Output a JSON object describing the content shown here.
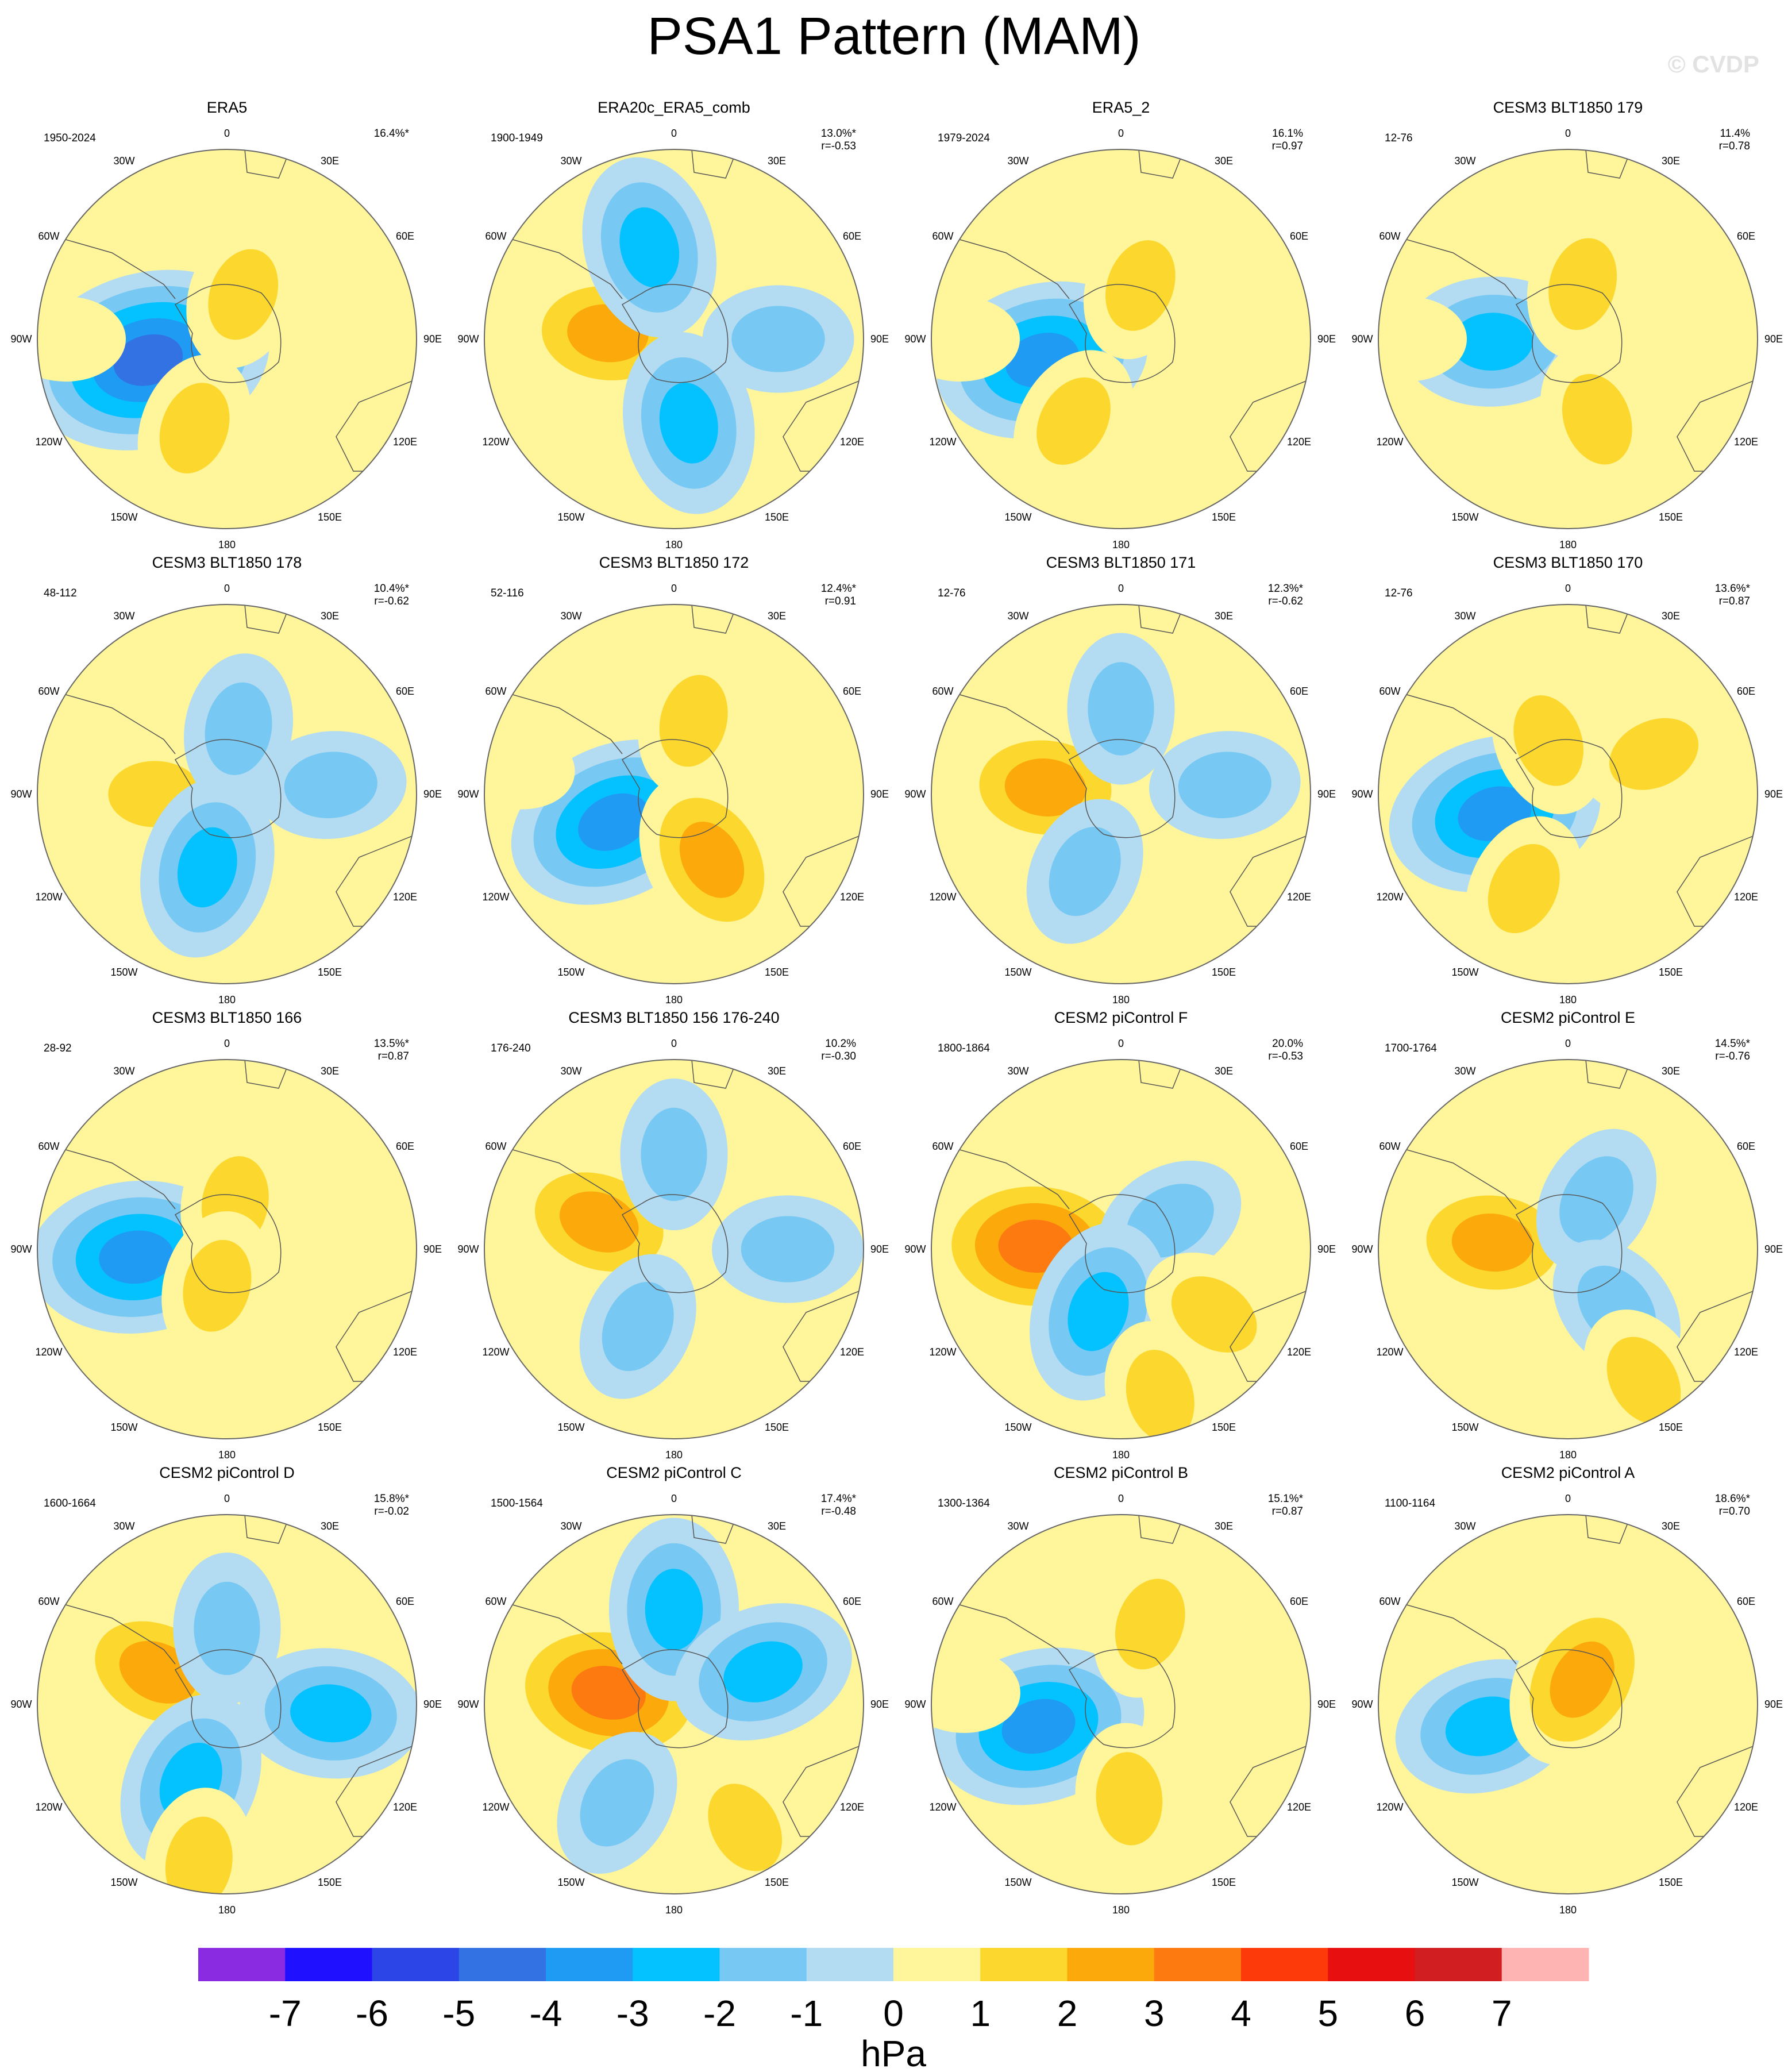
{
  "title": "PSA1 Pattern (MAM)",
  "watermark": "© CVDP",
  "longitude_labels": [
    "0",
    "30E",
    "60E",
    "90E",
    "120E",
    "150E",
    "180",
    "150W",
    "120W",
    "90W",
    "60W",
    "30W"
  ],
  "colorbar": {
    "colors": [
      "#8a2be2",
      "#1f10ff",
      "#2b45e6",
      "#3272e3",
      "#1f9bf4",
      "#04c2ff",
      "#77c8f2",
      "#b3dcf2",
      "#fff59a",
      "#fcd82e",
      "#fca90c",
      "#fc7a10",
      "#fc3a0a",
      "#e80f10",
      "#d01e21",
      "#ffb4b4"
    ],
    "labels": [
      "-7",
      "-6",
      "-5",
      "-4",
      "-3",
      "-2",
      "-1",
      "0",
      "1",
      "2",
      "3",
      "4",
      "5",
      "6",
      "7"
    ],
    "units": "hPa"
  },
  "panels": [
    {
      "title": "ERA5",
      "years": "1950-2024",
      "pct": "16.4%*",
      "r": "",
      "blobs": [
        {
          "lon": 255,
          "dist": 0.43,
          "max": -5
        },
        {
          "lon": 20,
          "dist": 0.25,
          "max": 2
        },
        {
          "lon": 200,
          "dist": 0.5,
          "max": 2
        },
        {
          "lon": 270,
          "dist": 0.85,
          "max": 1
        }
      ]
    },
    {
      "title": "ERA20c_ERA5_comb",
      "years": "1900-1949",
      "pct": "13.0%*",
      "r": "r=-0.53",
      "blobs": [
        {
          "lon": 275,
          "dist": 0.35,
          "max": 3
        },
        {
          "lon": 170,
          "dist": 0.45,
          "max": -3
        },
        {
          "lon": 345,
          "dist": 0.5,
          "max": -3
        },
        {
          "lon": 90,
          "dist": 0.55,
          "max": -2
        }
      ]
    },
    {
      "title": "ERA5_2",
      "years": "1979-2024",
      "pct": "16.1%",
      "r": "r=0.97",
      "blobs": [
        {
          "lon": 255,
          "dist": 0.43,
          "max": -4
        },
        {
          "lon": 20,
          "dist": 0.3,
          "max": 2
        },
        {
          "lon": 210,
          "dist": 0.5,
          "max": 2
        },
        {
          "lon": 270,
          "dist": 0.85,
          "max": 1
        }
      ]
    },
    {
      "title": "CESM3 BLT1850 179",
      "years": "12-76",
      "pct": "11.4%",
      "r": "r=0.78",
      "blobs": [
        {
          "lon": 268,
          "dist": 0.4,
          "max": -3
        },
        {
          "lon": 15,
          "dist": 0.3,
          "max": 2
        },
        {
          "lon": 160,
          "dist": 0.45,
          "max": 2
        },
        {
          "lon": 270,
          "dist": 0.85,
          "max": 1
        }
      ]
    },
    {
      "title": "CESM3 BLT1850 178",
      "years": "48-112",
      "pct": "10.4%*",
      "r": "r=-0.62",
      "blobs": [
        {
          "lon": 270,
          "dist": 0.38,
          "max": 2
        },
        {
          "lon": 10,
          "dist": 0.35,
          "max": -2
        },
        {
          "lon": 195,
          "dist": 0.4,
          "max": -3
        },
        {
          "lon": 85,
          "dist": 0.55,
          "max": -2
        }
      ]
    },
    {
      "title": "CESM3 BLT1850 172",
      "years": "52-116",
      "pct": "12.4%*",
      "r": "r=0.91",
      "blobs": [
        {
          "lon": 245,
          "dist": 0.35,
          "max": -4
        },
        {
          "lon": 150,
          "dist": 0.4,
          "max": 3
        },
        {
          "lon": 15,
          "dist": 0.4,
          "max": 2
        },
        {
          "lon": 280,
          "dist": 0.85,
          "max": 1
        }
      ]
    },
    {
      "title": "CESM3 BLT1850 171",
      "years": "12-76",
      "pct": "12.3%*",
      "r": "r=-0.62",
      "blobs": [
        {
          "lon": 275,
          "dist": 0.4,
          "max": 3
        },
        {
          "lon": 0,
          "dist": 0.45,
          "max": -2
        },
        {
          "lon": 205,
          "dist": 0.45,
          "max": -2
        },
        {
          "lon": 85,
          "dist": 0.55,
          "max": -2
        }
      ]
    },
    {
      "title": "CESM3 BLT1850 170",
      "years": "12-76",
      "pct": "13.6%*",
      "r": "r=0.87",
      "blobs": [
        {
          "lon": 255,
          "dist": 0.4,
          "max": -4
        },
        {
          "lon": 340,
          "dist": 0.3,
          "max": 2
        },
        {
          "lon": 65,
          "dist": 0.5,
          "max": 2
        },
        {
          "lon": 205,
          "dist": 0.55,
          "max": 2
        }
      ]
    },
    {
      "title": "CESM3 BLT1850 166",
      "years": "28-92",
      "pct": "13.5%*",
      "r": "r=0.87",
      "blobs": [
        {
          "lon": 265,
          "dist": 0.48,
          "max": -4
        },
        {
          "lon": 10,
          "dist": 0.25,
          "max": 2
        },
        {
          "lon": 195,
          "dist": 0.2,
          "max": 2
        },
        {
          "lon": 75,
          "dist": 0.55,
          "max": 1
        }
      ]
    },
    {
      "title": "CESM3 BLT1850 156 176-240",
      "years": "176-240",
      "pct": "10.2%",
      "r": "r=-0.30",
      "blobs": [
        {
          "lon": 290,
          "dist": 0.42,
          "max": 3
        },
        {
          "lon": 0,
          "dist": 0.5,
          "max": -2
        },
        {
          "lon": 205,
          "dist": 0.45,
          "max": -2
        },
        {
          "lon": 90,
          "dist": 0.6,
          "max": -2
        }
      ]
    },
    {
      "title": "CESM2 piControl F",
      "years": "1800-1864",
      "pct": "20.0%",
      "r": "r=-0.53",
      "blobs": [
        {
          "lon": 272,
          "dist": 0.45,
          "max": 4
        },
        {
          "lon": 60,
          "dist": 0.3,
          "max": -2
        },
        {
          "lon": 200,
          "dist": 0.35,
          "max": -3
        },
        {
          "lon": 125,
          "dist": 0.6,
          "max": 2
        },
        {
          "lon": 165,
          "dist": 0.8,
          "max": 2
        }
      ]
    },
    {
      "title": "CESM2 piControl E",
      "years": "1700-1764",
      "pct": "14.5%*",
      "r": "r=-0.76",
      "blobs": [
        {
          "lon": 275,
          "dist": 0.4,
          "max": 3
        },
        {
          "lon": 30,
          "dist": 0.3,
          "max": -2
        },
        {
          "lon": 140,
          "dist": 0.4,
          "max": -2
        },
        {
          "lon": 150,
          "dist": 0.8,
          "max": 2
        }
      ]
    },
    {
      "title": "CESM2 piControl D",
      "years": "1600-1664",
      "pct": "15.8%*",
      "r": "r=-0.02",
      "blobs": [
        {
          "lon": 295,
          "dist": 0.4,
          "max": 3
        },
        {
          "lon": 205,
          "dist": 0.45,
          "max": -3
        },
        {
          "lon": 95,
          "dist": 0.55,
          "max": -3
        },
        {
          "lon": 0,
          "dist": 0.4,
          "max": -2
        },
        {
          "lon": 190,
          "dist": 0.85,
          "max": 2
        }
      ]
    },
    {
      "title": "CESM2 piControl C",
      "years": "1500-1564",
      "pct": "17.4%*",
      "r": "r=-0.48",
      "blobs": [
        {
          "lon": 280,
          "dist": 0.35,
          "max": 4
        },
        {
          "lon": 0,
          "dist": 0.5,
          "max": -3
        },
        {
          "lon": 70,
          "dist": 0.5,
          "max": -3
        },
        {
          "lon": 210,
          "dist": 0.6,
          "max": -2
        },
        {
          "lon": 150,
          "dist": 0.75,
          "max": 2
        }
      ]
    },
    {
      "title": "CESM2 piControl B",
      "years": "1300-1364",
      "pct": "15.1%*",
      "r": "r=0.87",
      "blobs": [
        {
          "lon": 255,
          "dist": 0.45,
          "max": -4
        },
        {
          "lon": 20,
          "dist": 0.45,
          "max": 2
        },
        {
          "lon": 175,
          "dist": 0.5,
          "max": 2
        },
        {
          "lon": 275,
          "dist": 0.85,
          "max": 1
        }
      ]
    },
    {
      "title": "CESM2 piControl A",
      "years": "1100-1164",
      "pct": "18.6%*",
      "r": "r=0.70",
      "blobs": [
        {
          "lon": 255,
          "dist": 0.45,
          "max": -3
        },
        {
          "lon": 30,
          "dist": 0.15,
          "max": 3
        },
        {
          "lon": 80,
          "dist": 0.85,
          "max": 1
        }
      ]
    }
  ]
}
